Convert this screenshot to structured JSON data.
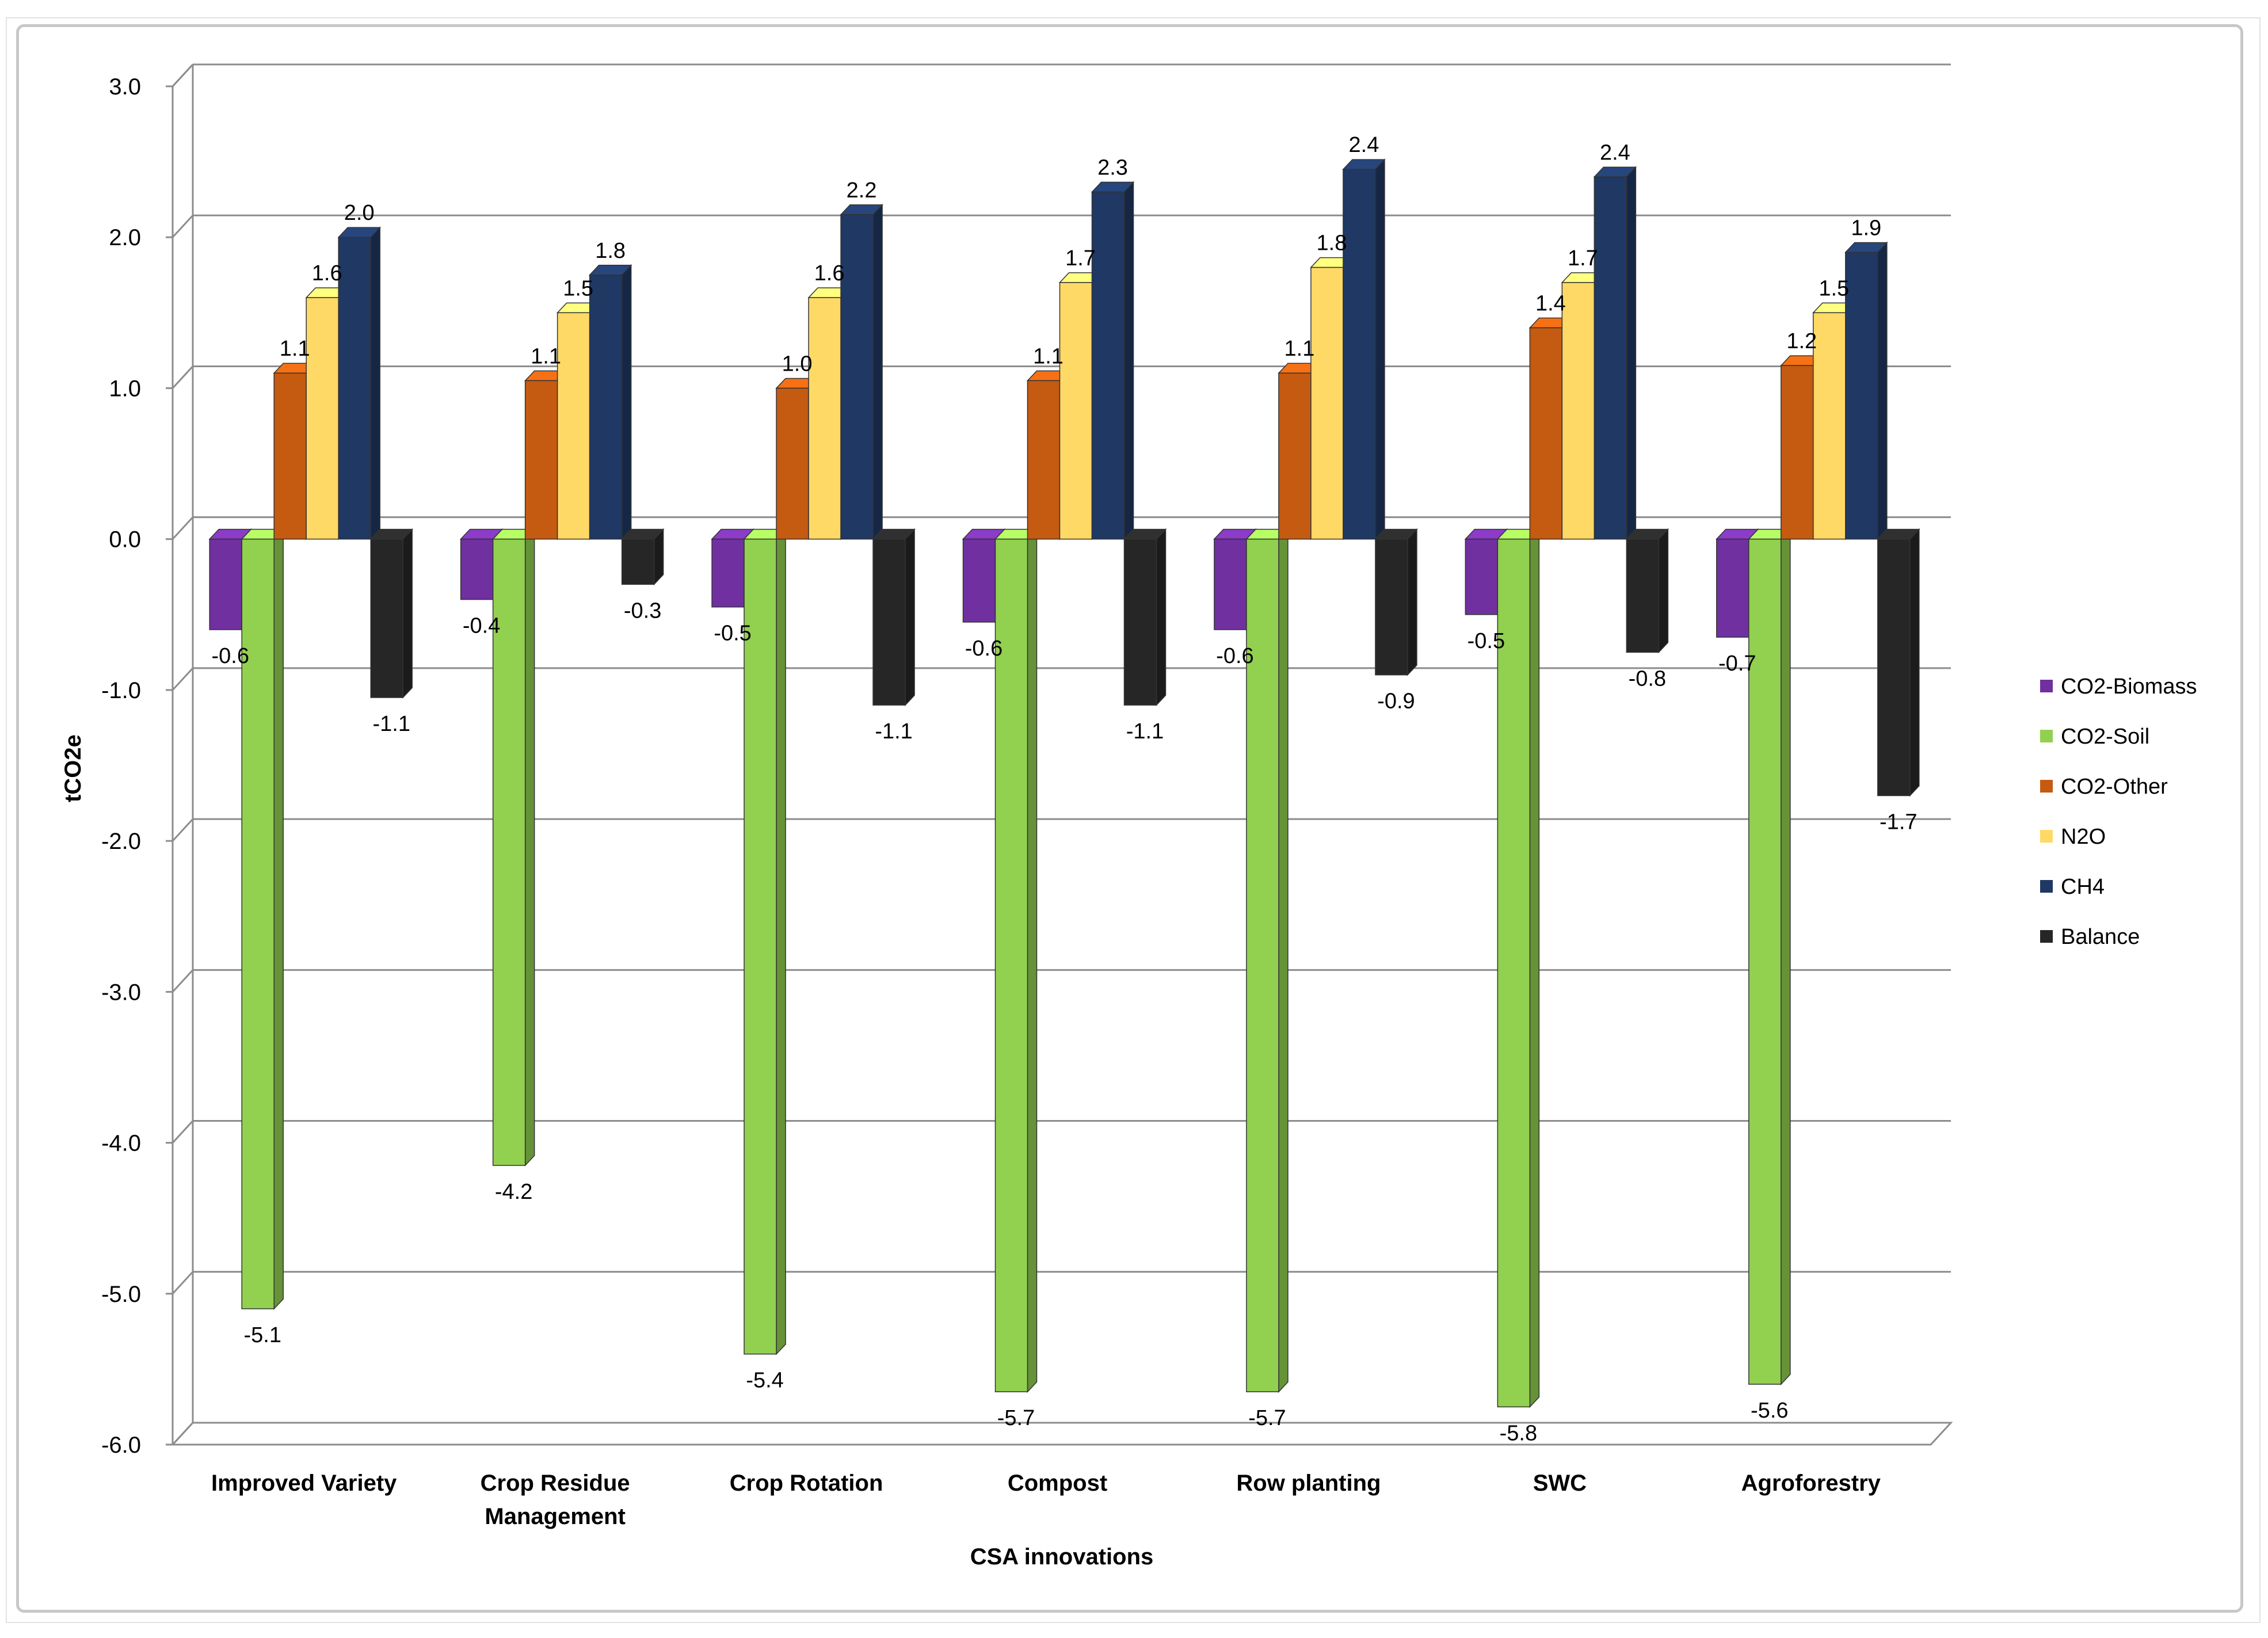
{
  "chart_data": {
    "type": "bar",
    "title": "",
    "xlabel": "CSA innovations",
    "ylabel": "tCO2e",
    "ylim": [
      -6,
      3
    ],
    "yticks": [
      3,
      2,
      1,
      0,
      -1,
      -2,
      -3,
      -4,
      -5,
      -6
    ],
    "ytick_labels": [
      "3.0",
      "2.0",
      "1.0",
      "0.0",
      "-1.0",
      "-2.0",
      "-3.0",
      "-4.0",
      "-5.0",
      "-6.0"
    ],
    "categories": [
      [
        "Improved Variety"
      ],
      [
        "Crop Residue",
        "Management"
      ],
      [
        "Crop Rotation"
      ],
      [
        "Compost"
      ],
      [
        "Row planting"
      ],
      [
        "SWC"
      ],
      [
        "Agroforestry"
      ]
    ],
    "series": [
      {
        "name": "CO2-Biomass",
        "color": "#7030a0",
        "values": [
          -0.6,
          -0.4,
          -0.45,
          -0.55,
          -0.6,
          -0.5,
          -0.65
        ],
        "labels": [
          "-0.6",
          "-0.4",
          "-0.5",
          "-0.6",
          "-0.6",
          "-0.5",
          "-0.7"
        ]
      },
      {
        "name": "CO2-Soil",
        "color": "#92d050",
        "values": [
          -5.1,
          -4.15,
          -5.4,
          -5.65,
          -5.65,
          -5.75,
          -5.6
        ],
        "labels": [
          "-5.1",
          "-4.2",
          "-5.4",
          "-5.7",
          "-5.7",
          "-5.8",
          "-5.6"
        ]
      },
      {
        "name": "CO2-Other",
        "color": "#c55a11",
        "values": [
          1.1,
          1.05,
          1.0,
          1.05,
          1.1,
          1.4,
          1.15
        ],
        "labels": [
          "1.1",
          "1.1",
          "1.0",
          "1.1",
          "1.1",
          "1.4",
          "1.2"
        ]
      },
      {
        "name": "N2O",
        "color": "#ffd966",
        "values": [
          1.6,
          1.5,
          1.6,
          1.7,
          1.8,
          1.7,
          1.5
        ],
        "labels": [
          "1.6",
          "1.5",
          "1.6",
          "1.7",
          "1.8",
          "1.7",
          "1.5"
        ]
      },
      {
        "name": "CH4",
        "color": "#1f3864",
        "values": [
          2.0,
          1.75,
          2.15,
          2.3,
          2.45,
          2.4,
          1.9
        ],
        "labels": [
          "2.0",
          "1.8",
          "2.2",
          "2.3",
          "2.4",
          "2.4",
          "1.9"
        ]
      },
      {
        "name": "Balance",
        "color": "#262626",
        "values": [
          -1.05,
          -0.3,
          -1.1,
          -1.1,
          -0.9,
          -0.75,
          -1.7
        ],
        "labels": [
          "-1.1",
          "-0.3",
          "-1.1",
          "-1.1",
          "-0.9",
          "-0.8",
          "-1.7"
        ]
      }
    ],
    "legend_position": "right",
    "grid": true
  }
}
